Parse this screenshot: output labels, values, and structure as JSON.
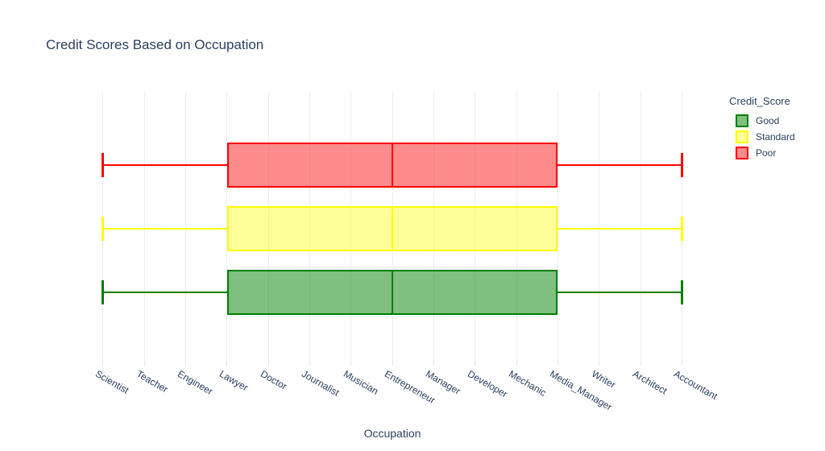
{
  "title": "Credit Scores Based on Occupation",
  "x_axis_title": "Occupation",
  "legend": {
    "title": "Credit_Score",
    "items": [
      {
        "label": "Good",
        "line": "#008000",
        "fill": "rgba(0,128,0,0.5)"
      },
      {
        "label": "Standard",
        "line": "#ffff00",
        "fill": "rgba(255,255,0,0.4)"
      },
      {
        "label": "Poor",
        "line": "#ff0000",
        "fill": "rgba(255,0,0,0.45)"
      }
    ]
  },
  "chart_data": {
    "type": "box",
    "orientation": "horizontal",
    "title": "Credit Scores Based on Occupation",
    "xlabel": "Occupation",
    "x_categories": [
      "Scientist",
      "Teacher",
      "Engineer",
      "Lawyer",
      "Doctor",
      "Journalist",
      "Musician",
      "Entrepreneur",
      "Manager",
      "Developer",
      "Mechanic",
      "Media_Manager",
      "Writer",
      "Architect",
      "Accountant"
    ],
    "x_tick_angle_deg": 30,
    "grid": "vertical-light",
    "legend_position": "right",
    "series": [
      {
        "name": "Poor",
        "line": "#ff0000",
        "fill": "rgba(255,0,0,0.45)",
        "min": "Scientist",
        "q1": "Lawyer",
        "median": "Entrepreneur",
        "q3": "Media_Manager",
        "max": "Accountant"
      },
      {
        "name": "Standard",
        "line": "#ffff00",
        "fill": "rgba(255,255,0,0.4)",
        "min": "Scientist",
        "q1": "Lawyer",
        "median": "Entrepreneur",
        "q3": "Media_Manager",
        "max": "Accountant"
      },
      {
        "name": "Good",
        "line": "#008000",
        "fill": "rgba(0,128,0,0.5)",
        "min": "Scientist",
        "q1": "Lawyer",
        "median": "Entrepreneur",
        "q3": "Media_Manager",
        "max": "Accountant"
      }
    ]
  }
}
